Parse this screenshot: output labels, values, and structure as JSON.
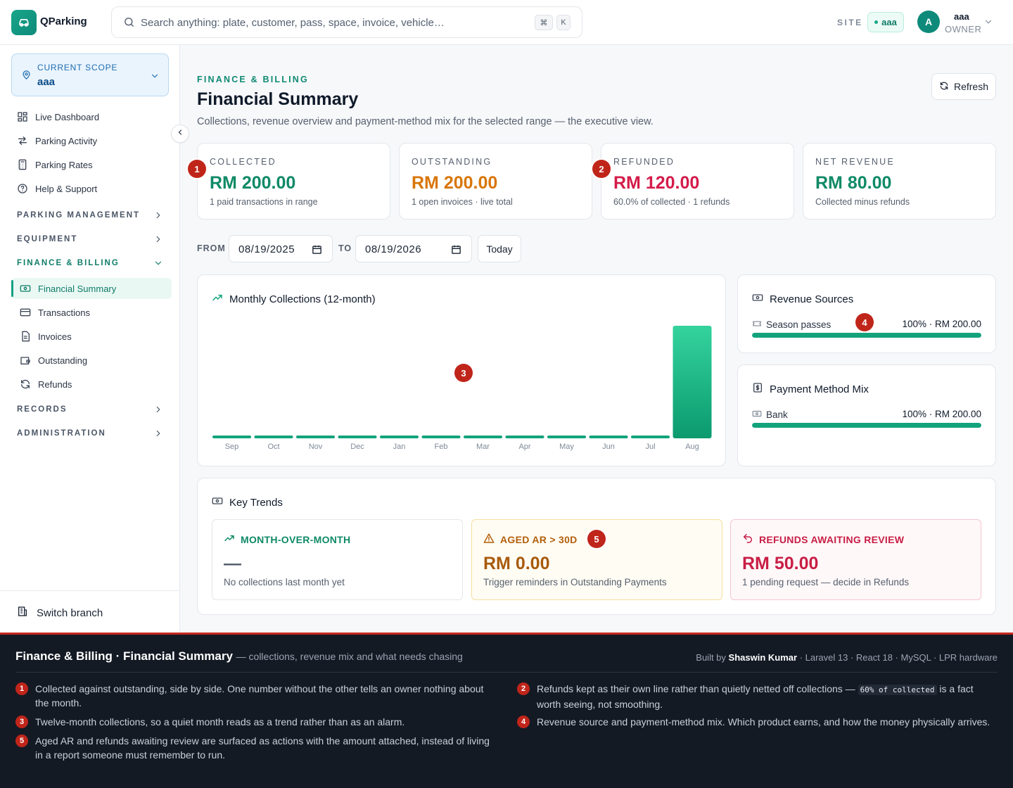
{
  "app": {
    "name": "QParking"
  },
  "search": {
    "placeholder": "Search anything: plate, customer, pass, space, invoice, vehicle…",
    "kbd1": "⌘",
    "kbd2": "K"
  },
  "site": {
    "label": "SITE",
    "value": "aaa"
  },
  "user": {
    "initial": "A",
    "name": "aaa",
    "role": "OWNER"
  },
  "sidebar": {
    "scope_label": "CURRENT SCOPE",
    "scope_value": "aaa",
    "items": [
      {
        "label": "Live Dashboard",
        "icon": "grid-icon"
      },
      {
        "label": "Parking Activity",
        "icon": "arrows-icon"
      },
      {
        "label": "Parking Rates",
        "icon": "calculator-icon"
      },
      {
        "label": "Help & Support",
        "icon": "help-icon"
      }
    ],
    "groups": {
      "parking_management": "PARKING MANAGEMENT",
      "equipment": "EQUIPMENT",
      "finance_billing": "FINANCE & BILLING",
      "records": "RECORDS",
      "administration": "ADMINISTRATION"
    },
    "finance_items": [
      {
        "label": "Financial Summary",
        "icon": "banknote-icon"
      },
      {
        "label": "Transactions",
        "icon": "card-icon"
      },
      {
        "label": "Invoices",
        "icon": "document-icon"
      },
      {
        "label": "Outstanding",
        "icon": "wallet-icon"
      },
      {
        "label": "Refunds",
        "icon": "refresh-icon"
      }
    ],
    "switch_branch": "Switch branch"
  },
  "page": {
    "eyebrow": "FINANCE & BILLING",
    "title": "Financial Summary",
    "subtitle": "Collections, revenue overview and payment-method mix for the selected range — the executive view.",
    "refresh": "Refresh"
  },
  "kpis": [
    {
      "label": "COLLECTED",
      "value": "RM 200.00",
      "sub": "1 paid transactions in range",
      "color": "#0f8a66"
    },
    {
      "label": "OUTSTANDING",
      "value": "RM 200.00",
      "sub": "1 open invoices · live total",
      "color": "#d9760a"
    },
    {
      "label": "REFUNDED",
      "value": "RM 120.00",
      "sub": "60.0% of collected · 1 refunds",
      "color": "#d41c4a"
    },
    {
      "label": "NET REVENUE",
      "value": "RM 80.00",
      "sub": "Collected minus refunds",
      "color": "#0f8a66"
    }
  ],
  "range": {
    "from_label": "FROM",
    "from": "08/19/2025",
    "to_label": "TO",
    "to": "08/19/2026",
    "today": "Today"
  },
  "monthly": {
    "title": "Monthly Collections (12-month)"
  },
  "chart_data": {
    "type": "bar",
    "title": "Monthly Collections (12-month)",
    "categories": [
      "Sep",
      "Oct",
      "Nov",
      "Dec",
      "Jan",
      "Feb",
      "Mar",
      "Apr",
      "May",
      "Jun",
      "Jul",
      "Aug"
    ],
    "values": [
      0,
      0,
      0,
      0,
      0,
      0,
      0,
      0,
      0,
      0,
      0,
      200
    ],
    "ylim": [
      0,
      200
    ],
    "grid": false,
    "color": "#13a37c"
  },
  "revenue_sources": {
    "title": "Revenue Sources",
    "rows": [
      {
        "label": "Season passes",
        "value": "100% · RM 200.00",
        "share": 1.0
      }
    ]
  },
  "payment_mix": {
    "title": "Payment Method Mix",
    "rows": [
      {
        "label": "Bank",
        "value": "100% · RM 200.00",
        "share": 1.0
      }
    ]
  },
  "trends": {
    "title": "Key Trends",
    "mom": {
      "label": "MONTH-OVER-MONTH",
      "value": "—",
      "sub": "No collections last month yet"
    },
    "aged": {
      "label": "AGED AR > 30D",
      "value": "RM 0.00",
      "sub": "Trigger reminders in Outstanding Payments"
    },
    "refunds": {
      "label": "REFUNDS AWAITING REVIEW",
      "value": "RM 50.00",
      "sub": "1 pending request — decide in Refunds"
    }
  },
  "badges": [
    "1",
    "2",
    "3",
    "4",
    "5"
  ],
  "footer": {
    "title": "Finance & Billing · Financial Summary",
    "tagline": "— collections, revenue mix and what needs chasing",
    "built_prefix": "Built by",
    "built_name": "Shaswin Kumar",
    "built_suffix": "· Laravel 13 · React 18 · MySQL · LPR hardware",
    "notes": [
      {
        "n": "1",
        "text": "Collected against outstanding, side by side. One number without the other tells an owner nothing about the month."
      },
      {
        "n": "2",
        "pre": "Refunds kept as their own line rather than quietly netted off collections —",
        "code": "60% of collected",
        "post": "is a fact worth seeing, not smoothing."
      },
      {
        "n": "3",
        "text": "Twelve-month collections, so a quiet month reads as a trend rather than as an alarm."
      },
      {
        "n": "4",
        "text": "Revenue source and payment-method mix. Which product earns, and how the money physically arrives."
      },
      {
        "n": "5",
        "text": "Aged AR and refunds awaiting review are surfaced as actions with the amount attached, instead of living in a report someone must remember to run."
      }
    ]
  }
}
